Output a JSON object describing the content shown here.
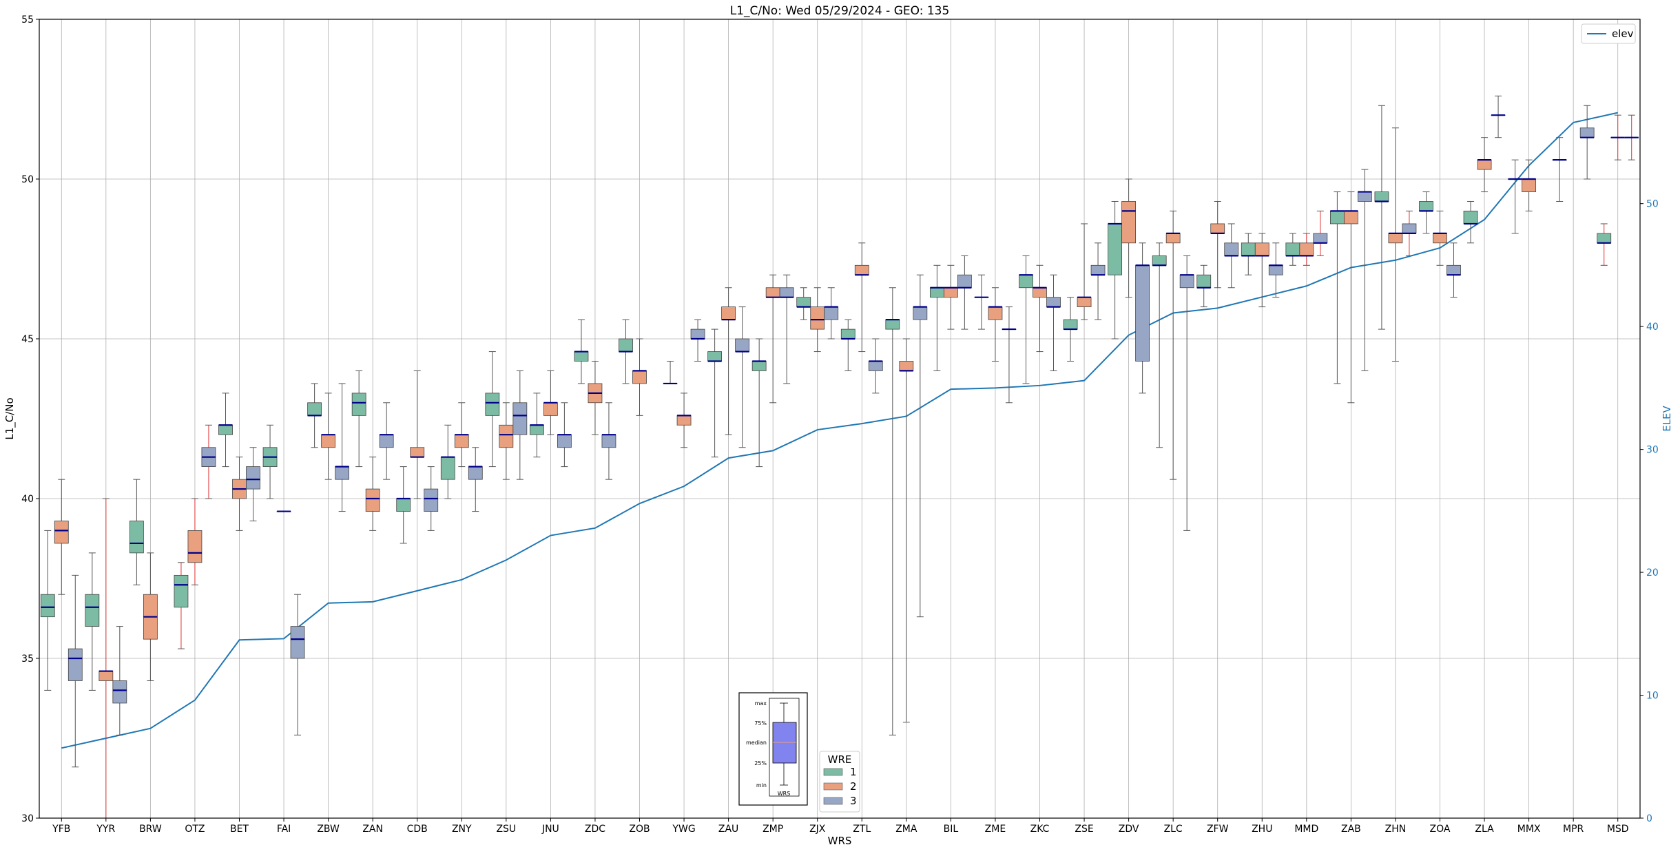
{
  "chart_data": {
    "type": "box",
    "title": "L1_C/No: Wed 05/29/2024 - GEO: 135",
    "xlabel": "WRS",
    "ylabel": "L1_C/No",
    "ylabel_right": "ELEV",
    "ylim": [
      30,
      55
    ],
    "ylim_right": [
      0,
      65
    ],
    "yticks": [
      "30",
      "35",
      "40",
      "45",
      "50",
      "55"
    ],
    "yticks_right": [
      "0",
      "10",
      "20",
      "30",
      "40",
      "50"
    ],
    "grid": true,
    "categories": [
      "YFB",
      "YYR",
      "BRW",
      "OTZ",
      "BET",
      "FAI",
      "ZBW",
      "ZAN",
      "CDB",
      "ZNY",
      "ZSU",
      "JNU",
      "ZDC",
      "ZOB",
      "YWG",
      "ZAU",
      "ZMP",
      "ZJX",
      "ZTL",
      "ZMA",
      "BIL",
      "ZME",
      "ZKC",
      "ZSE",
      "ZDV",
      "ZLC",
      "ZFW",
      "ZHU",
      "MMD",
      "ZAB",
      "ZHN",
      "ZOA",
      "ZLA",
      "MMX",
      "MPR",
      "MSD"
    ],
    "elev": {
      "name": "elev",
      "color": "#1f77b4",
      "values": [
        5.7,
        6.5,
        7.3,
        9.6,
        14.5,
        14.6,
        17.5,
        17.6,
        18.5,
        19.4,
        21.0,
        23.0,
        23.6,
        25.6,
        27.0,
        29.3,
        29.9,
        31.6,
        32.1,
        32.7,
        34.9,
        35.0,
        35.2,
        35.6,
        39.3,
        41.1,
        41.5,
        42.4,
        43.3,
        44.8,
        45.4,
        46.4,
        48.7,
        53.1,
        56.6,
        57.4
      ]
    },
    "wre_legend": {
      "title": "WRE",
      "entries": [
        {
          "label": "1",
          "color": "#7dbca4"
        },
        {
          "label": "2",
          "color": "#e9a07f"
        },
        {
          "label": "3",
          "color": "#98a6c6"
        }
      ]
    },
    "boxes": [
      {
        "station": "YFB",
        "wre": 1,
        "min": 34.0,
        "q1": 36.3,
        "median": 36.6,
        "q3": 37.0,
        "max": 39.0
      },
      {
        "station": "YFB",
        "wre": 2,
        "min": 37.0,
        "q1": 38.6,
        "median": 39.0,
        "q3": 39.3,
        "max": 40.6
      },
      {
        "station": "YFB",
        "wre": 3,
        "min": 31.6,
        "q1": 34.3,
        "median": 35.0,
        "q3": 35.3,
        "max": 37.6
      },
      {
        "station": "YYR",
        "wre": 1,
        "min": 34.0,
        "q1": 36.0,
        "median": 36.6,
        "q3": 37.0,
        "max": 38.3
      },
      {
        "station": "YYR",
        "wre": 2,
        "min": 30.0,
        "q1": 34.3,
        "median": 34.6,
        "q3": 34.6,
        "max": 40.0,
        "whisker_color": "red"
      },
      {
        "station": "YYR",
        "wre": 3,
        "min": 32.6,
        "q1": 33.6,
        "median": 34.0,
        "q3": 34.3,
        "max": 36.0
      },
      {
        "station": "BRW",
        "wre": 1,
        "min": 37.3,
        "q1": 38.3,
        "median": 38.6,
        "q3": 39.3,
        "max": 40.6
      },
      {
        "station": "BRW",
        "wre": 2,
        "min": 34.3,
        "q1": 35.6,
        "median": 36.3,
        "q3": 37.0,
        "max": 38.3
      },
      {
        "station": "OTZ",
        "wre": 1,
        "min": 35.3,
        "q1": 36.6,
        "median": 37.3,
        "q3": 37.6,
        "max": 38.0,
        "whisker_color": "red"
      },
      {
        "station": "OTZ",
        "wre": 2,
        "min": 37.3,
        "q1": 38.0,
        "median": 38.3,
        "q3": 39.0,
        "max": 40.0,
        "whisker_color": "red"
      },
      {
        "station": "OTZ",
        "wre": 3,
        "min": 40.0,
        "q1": 41.0,
        "median": 41.3,
        "q3": 41.6,
        "max": 42.3,
        "whisker_color": "red"
      },
      {
        "station": "BET",
        "wre": 1,
        "min": 41.0,
        "q1": 42.0,
        "median": 42.3,
        "q3": 42.3,
        "max": 43.3
      },
      {
        "station": "BET",
        "wre": 2,
        "min": 39.0,
        "q1": 40.0,
        "median": 40.3,
        "q3": 40.6,
        "max": 41.3
      },
      {
        "station": "BET",
        "wre": 3,
        "min": 39.3,
        "q1": 40.3,
        "median": 40.6,
        "q3": 41.0,
        "max": 41.6
      },
      {
        "station": "FAI",
        "wre": 1,
        "min": 40.0,
        "q1": 41.0,
        "median": 41.3,
        "q3": 41.6,
        "max": 42.3
      },
      {
        "station": "FAI",
        "wre": 2,
        "min": 39.6,
        "q1": 39.6,
        "median": 39.6,
        "q3": 39.6,
        "max": 39.6
      },
      {
        "station": "FAI",
        "wre": 3,
        "min": 32.6,
        "q1": 35.0,
        "median": 35.6,
        "q3": 36.0,
        "max": 37.0
      },
      {
        "station": "ZBW",
        "wre": 1,
        "min": 41.6,
        "q1": 42.6,
        "median": 42.6,
        "q3": 43.0,
        "max": 43.6
      },
      {
        "station": "ZBW",
        "wre": 2,
        "min": 40.6,
        "q1": 41.6,
        "median": 42.0,
        "q3": 42.0,
        "max": 43.3
      },
      {
        "station": "ZBW",
        "wre": 3,
        "min": 39.6,
        "q1": 40.6,
        "median": 41.0,
        "q3": 41.0,
        "max": 43.6
      },
      {
        "station": "ZAN",
        "wre": 1,
        "min": 41.0,
        "q1": 42.6,
        "median": 43.0,
        "q3": 43.3,
        "max": 44.0
      },
      {
        "station": "ZAN",
        "wre": 2,
        "min": 39.0,
        "q1": 39.6,
        "median": 40.0,
        "q3": 40.3,
        "max": 41.3
      },
      {
        "station": "ZAN",
        "wre": 3,
        "min": 40.6,
        "q1": 41.6,
        "median": 42.0,
        "q3": 42.0,
        "max": 43.0
      },
      {
        "station": "CDB",
        "wre": 1,
        "min": 38.6,
        "q1": 39.6,
        "median": 40.0,
        "q3": 40.0,
        "max": 41.0
      },
      {
        "station": "CDB",
        "wre": 2,
        "min": 40.0,
        "q1": 41.3,
        "median": 41.3,
        "q3": 41.6,
        "max": 44.0
      },
      {
        "station": "CDB",
        "wre": 3,
        "min": 39.0,
        "q1": 39.6,
        "median": 40.0,
        "q3": 40.3,
        "max": 41.0
      },
      {
        "station": "ZNY",
        "wre": 1,
        "min": 40.0,
        "q1": 40.6,
        "median": 41.3,
        "q3": 41.3,
        "max": 42.3
      },
      {
        "station": "ZNY",
        "wre": 2,
        "min": 41.0,
        "q1": 41.6,
        "median": 42.0,
        "q3": 42.0,
        "max": 43.0
      },
      {
        "station": "ZNY",
        "wre": 3,
        "min": 39.6,
        "q1": 40.6,
        "median": 41.0,
        "q3": 41.0,
        "max": 41.6
      },
      {
        "station": "ZSU",
        "wre": 1,
        "min": 41.0,
        "q1": 42.6,
        "median": 43.0,
        "q3": 43.3,
        "max": 44.6
      },
      {
        "station": "ZSU",
        "wre": 2,
        "min": 40.6,
        "q1": 41.6,
        "median": 42.0,
        "q3": 42.3,
        "max": 43.0
      },
      {
        "station": "ZSU",
        "wre": 3,
        "min": 40.6,
        "q1": 42.0,
        "median": 42.6,
        "q3": 43.0,
        "max": 44.0
      },
      {
        "station": "JNU",
        "wre": 1,
        "min": 41.3,
        "q1": 42.0,
        "median": 42.3,
        "q3": 42.3,
        "max": 43.3
      },
      {
        "station": "JNU",
        "wre": 2,
        "min": 42.0,
        "q1": 42.6,
        "median": 43.0,
        "q3": 43.0,
        "max": 44.0
      },
      {
        "station": "JNU",
        "wre": 3,
        "min": 41.0,
        "q1": 41.6,
        "median": 42.0,
        "q3": 42.0,
        "max": 43.0
      },
      {
        "station": "ZDC",
        "wre": 1,
        "min": 43.6,
        "q1": 44.3,
        "median": 44.6,
        "q3": 44.6,
        "max": 45.6
      },
      {
        "station": "ZDC",
        "wre": 2,
        "min": 42.0,
        "q1": 43.0,
        "median": 43.3,
        "q3": 43.6,
        "max": 44.3
      },
      {
        "station": "ZDC",
        "wre": 3,
        "min": 40.6,
        "q1": 41.6,
        "median": 42.0,
        "q3": 42.0,
        "max": 43.0
      },
      {
        "station": "ZOB",
        "wre": 1,
        "min": 43.6,
        "q1": 44.6,
        "median": 44.6,
        "q3": 45.0,
        "max": 45.6
      },
      {
        "station": "ZOB",
        "wre": 2,
        "min": 42.6,
        "q1": 43.6,
        "median": 44.0,
        "q3": 44.0,
        "max": 45.0
      },
      {
        "station": "YWG",
        "wre": 1,
        "min": 43.6,
        "q1": 43.6,
        "median": 43.6,
        "q3": 43.6,
        "max": 44.3
      },
      {
        "station": "YWG",
        "wre": 2,
        "min": 41.6,
        "q1": 42.3,
        "median": 42.6,
        "q3": 42.6,
        "max": 43.3
      },
      {
        "station": "YWG",
        "wre": 3,
        "min": 44.3,
        "q1": 45.0,
        "median": 45.0,
        "q3": 45.3,
        "max": 45.6
      },
      {
        "station": "ZAU",
        "wre": 1,
        "min": 41.3,
        "q1": 44.3,
        "median": 44.3,
        "q3": 44.6,
        "max": 45.3
      },
      {
        "station": "ZAU",
        "wre": 2,
        "min": 42.0,
        "q1": 45.6,
        "median": 45.6,
        "q3": 46.0,
        "max": 46.6
      },
      {
        "station": "ZAU",
        "wre": 3,
        "min": 41.6,
        "q1": 44.6,
        "median": 44.6,
        "q3": 45.0,
        "max": 46.0
      },
      {
        "station": "ZMP",
        "wre": 1,
        "min": 41.0,
        "q1": 44.0,
        "median": 44.3,
        "q3": 44.3,
        "max": 45.0
      },
      {
        "station": "ZMP",
        "wre": 2,
        "min": 43.0,
        "q1": 46.3,
        "median": 46.3,
        "q3": 46.6,
        "max": 47.0
      },
      {
        "station": "ZMP",
        "wre": 3,
        "min": 43.6,
        "q1": 46.3,
        "median": 46.3,
        "q3": 46.6,
        "max": 47.0
      },
      {
        "station": "ZJX",
        "wre": 1,
        "min": 45.6,
        "q1": 46.0,
        "median": 46.0,
        "q3": 46.3,
        "max": 46.6
      },
      {
        "station": "ZJX",
        "wre": 2,
        "min": 44.6,
        "q1": 45.3,
        "median": 45.6,
        "q3": 46.0,
        "max": 46.6
      },
      {
        "station": "ZJX",
        "wre": 3,
        "min": 45.0,
        "q1": 45.6,
        "median": 46.0,
        "q3": 46.0,
        "max": 46.6
      },
      {
        "station": "ZTL",
        "wre": 1,
        "min": 44.0,
        "q1": 45.0,
        "median": 45.0,
        "q3": 45.3,
        "max": 45.6
      },
      {
        "station": "ZTL",
        "wre": 2,
        "min": 44.6,
        "q1": 47.0,
        "median": 47.0,
        "q3": 47.3,
        "max": 48.0
      },
      {
        "station": "ZTL",
        "wre": 3,
        "min": 43.3,
        "q1": 44.0,
        "median": 44.3,
        "q3": 44.3,
        "max": 45.0
      },
      {
        "station": "ZMA",
        "wre": 1,
        "min": 32.6,
        "q1": 45.3,
        "median": 45.6,
        "q3": 45.6,
        "max": 46.6
      },
      {
        "station": "ZMA",
        "wre": 2,
        "min": 33.0,
        "q1": 44.0,
        "median": 44.0,
        "q3": 44.3,
        "max": 45.0
      },
      {
        "station": "ZMA",
        "wre": 3,
        "min": 36.3,
        "q1": 45.6,
        "median": 46.0,
        "q3": 46.0,
        "max": 47.0
      },
      {
        "station": "BIL",
        "wre": 1,
        "min": 44.0,
        "q1": 46.3,
        "median": 46.6,
        "q3": 46.6,
        "max": 47.3
      },
      {
        "station": "BIL",
        "wre": 2,
        "min": 45.3,
        "q1": 46.3,
        "median": 46.6,
        "q3": 46.6,
        "max": 47.3
      },
      {
        "station": "BIL",
        "wre": 3,
        "min": 45.3,
        "q1": 46.6,
        "median": 46.6,
        "q3": 47.0,
        "max": 47.6
      },
      {
        "station": "ZME",
        "wre": 1,
        "min": 45.3,
        "q1": 46.3,
        "median": 46.3,
        "q3": 46.3,
        "max": 47.0
      },
      {
        "station": "ZME",
        "wre": 2,
        "min": 44.3,
        "q1": 45.6,
        "median": 46.0,
        "q3": 46.0,
        "max": 46.6
      },
      {
        "station": "ZME",
        "wre": 3,
        "min": 43.0,
        "q1": 45.3,
        "median": 45.3,
        "q3": 45.3,
        "max": 46.0
      },
      {
        "station": "ZKC",
        "wre": 1,
        "min": 43.6,
        "q1": 46.6,
        "median": 47.0,
        "q3": 47.0,
        "max": 47.6
      },
      {
        "station": "ZKC",
        "wre": 2,
        "min": 44.6,
        "q1": 46.3,
        "median": 46.6,
        "q3": 46.6,
        "max": 47.3
      },
      {
        "station": "ZKC",
        "wre": 3,
        "min": 44.0,
        "q1": 46.0,
        "median": 46.0,
        "q3": 46.3,
        "max": 47.0
      },
      {
        "station": "ZSE",
        "wre": 1,
        "min": 44.3,
        "q1": 45.3,
        "median": 45.3,
        "q3": 45.6,
        "max": 46.3
      },
      {
        "station": "ZSE",
        "wre": 2,
        "min": 45.6,
        "q1": 46.0,
        "median": 46.3,
        "q3": 46.3,
        "max": 48.6
      },
      {
        "station": "ZSE",
        "wre": 3,
        "min": 45.6,
        "q1": 47.0,
        "median": 47.0,
        "q3": 47.3,
        "max": 48.0
      },
      {
        "station": "ZDV",
        "wre": 1,
        "min": 45.0,
        "q1": 47.0,
        "median": 48.6,
        "q3": 48.6,
        "max": 49.3
      },
      {
        "station": "ZDV",
        "wre": 2,
        "min": 46.3,
        "q1": 48.0,
        "median": 49.0,
        "q3": 49.3,
        "max": 50.0
      },
      {
        "station": "ZDV",
        "wre": 3,
        "min": 43.3,
        "q1": 44.3,
        "median": 47.3,
        "q3": 47.3,
        "max": 48.0
      },
      {
        "station": "ZLC",
        "wre": 1,
        "min": 41.6,
        "q1": 47.3,
        "median": 47.3,
        "q3": 47.6,
        "max": 48.0
      },
      {
        "station": "ZLC",
        "wre": 2,
        "min": 40.6,
        "q1": 48.0,
        "median": 48.3,
        "q3": 48.3,
        "max": 49.0
      },
      {
        "station": "ZLC",
        "wre": 3,
        "min": 39.0,
        "q1": 46.6,
        "median": 47.0,
        "q3": 47.0,
        "max": 47.6
      },
      {
        "station": "ZFW",
        "wre": 1,
        "min": 46.0,
        "q1": 46.6,
        "median": 46.6,
        "q3": 47.0,
        "max": 47.3
      },
      {
        "station": "ZFW",
        "wre": 2,
        "min": 46.6,
        "q1": 48.3,
        "median": 48.3,
        "q3": 48.6,
        "max": 49.3
      },
      {
        "station": "ZFW",
        "wre": 3,
        "min": 46.6,
        "q1": 47.6,
        "median": 47.6,
        "q3": 48.0,
        "max": 48.6
      },
      {
        "station": "ZHU",
        "wre": 1,
        "min": 47.0,
        "q1": 47.6,
        "median": 47.6,
        "q3": 48.0,
        "max": 48.3
      },
      {
        "station": "ZHU",
        "wre": 2,
        "min": 46.0,
        "q1": 47.6,
        "median": 47.6,
        "q3": 48.0,
        "max": 48.3
      },
      {
        "station": "ZHU",
        "wre": 3,
        "min": 46.3,
        "q1": 47.0,
        "median": 47.3,
        "q3": 47.3,
        "max": 48.0
      },
      {
        "station": "MMD",
        "wre": 1,
        "min": 47.3,
        "q1": 47.6,
        "median": 47.6,
        "q3": 48.0,
        "max": 48.3
      },
      {
        "station": "MMD",
        "wre": 2,
        "min": 47.3,
        "q1": 47.6,
        "median": 47.6,
        "q3": 48.0,
        "max": 48.3,
        "whisker_color": "red"
      },
      {
        "station": "MMD",
        "wre": 3,
        "min": 47.6,
        "q1": 48.0,
        "median": 48.0,
        "q3": 48.3,
        "max": 49.0,
        "whisker_color": "red"
      },
      {
        "station": "ZAB",
        "wre": 1,
        "min": 43.6,
        "q1": 48.6,
        "median": 49.0,
        "q3": 49.0,
        "max": 49.6
      },
      {
        "station": "ZAB",
        "wre": 2,
        "min": 43.0,
        "q1": 48.6,
        "median": 49.0,
        "q3": 49.0,
        "max": 49.6
      },
      {
        "station": "ZAB",
        "wre": 3,
        "min": 44.0,
        "q1": 49.3,
        "median": 49.6,
        "q3": 49.6,
        "max": 50.3
      },
      {
        "station": "ZHN",
        "wre": 1,
        "min": 45.3,
        "q1": 49.3,
        "median": 49.3,
        "q3": 49.6,
        "max": 52.3
      },
      {
        "station": "ZHN",
        "wre": 2,
        "min": 44.3,
        "q1": 48.0,
        "median": 48.3,
        "q3": 48.3,
        "max": 51.6
      },
      {
        "station": "ZHN",
        "wre": 3,
        "min": 47.6,
        "q1": 48.3,
        "median": 48.3,
        "q3": 48.6,
        "max": 49.0,
        "whisker_color": "red"
      },
      {
        "station": "ZOA",
        "wre": 1,
        "min": 48.3,
        "q1": 49.0,
        "median": 49.0,
        "q3": 49.3,
        "max": 49.6
      },
      {
        "station": "ZOA",
        "wre": 2,
        "min": 47.3,
        "q1": 48.0,
        "median": 48.3,
        "q3": 48.3,
        "max": 49.0
      },
      {
        "station": "ZOA",
        "wre": 3,
        "min": 46.3,
        "q1": 47.0,
        "median": 47.0,
        "q3": 47.3,
        "max": 48.0
      },
      {
        "station": "ZLA",
        "wre": 1,
        "min": 48.0,
        "q1": 48.6,
        "median": 48.6,
        "q3": 49.0,
        "max": 49.3
      },
      {
        "station": "ZLA",
        "wre": 2,
        "min": 49.6,
        "q1": 50.3,
        "median": 50.6,
        "q3": 50.6,
        "max": 51.3
      },
      {
        "station": "ZLA",
        "wre": 3,
        "min": 51.3,
        "q1": 52.0,
        "median": 52.0,
        "q3": 52.0,
        "max": 52.6
      },
      {
        "station": "MMX",
        "wre": 1,
        "min": 48.3,
        "q1": 50.0,
        "median": 50.0,
        "q3": 50.0,
        "max": 50.6
      },
      {
        "station": "MMX",
        "wre": 2,
        "min": 49.0,
        "q1": 49.6,
        "median": 50.0,
        "q3": 50.0,
        "max": 50.6
      },
      {
        "station": "MPR",
        "wre": 1,
        "min": 49.3,
        "q1": 50.6,
        "median": 50.6,
        "q3": 50.6,
        "max": 51.3
      },
      {
        "station": "MPR",
        "wre": 3,
        "min": 50.0,
        "q1": 51.3,
        "median": 51.3,
        "q3": 51.6,
        "max": 52.3
      },
      {
        "station": "MSD",
        "wre": 1,
        "min": 47.3,
        "q1": 48.0,
        "median": 48.0,
        "q3": 48.3,
        "max": 48.6,
        "whisker_color": "red"
      },
      {
        "station": "MSD",
        "wre": 2,
        "min": 50.6,
        "q1": 51.3,
        "median": 51.3,
        "q3": 51.3,
        "max": 52.0,
        "whisker_color": "red"
      },
      {
        "station": "MSD",
        "wre": 3,
        "min": 50.6,
        "q1": 51.3,
        "median": 51.3,
        "q3": 51.3,
        "max": 52.0,
        "whisker_color": "red"
      }
    ],
    "legend": {
      "position": "top-right",
      "entries": [
        "elev"
      ]
    },
    "box_key": {
      "labels": [
        "max",
        "75%",
        "median",
        "25%",
        "min"
      ],
      "xlabel": "WRS"
    }
  }
}
